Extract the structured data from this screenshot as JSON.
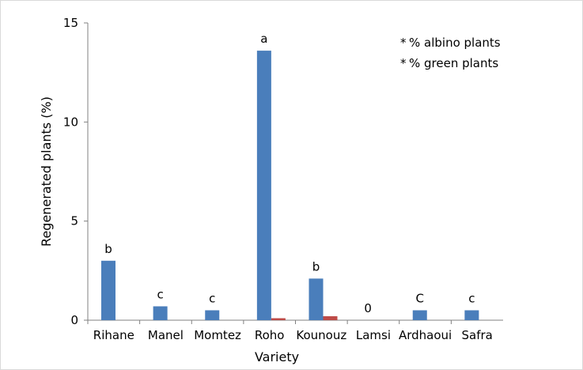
{
  "chart_data": {
    "type": "bar",
    "xlabel": "Variety",
    "ylabel": "Regenerated plants (%)",
    "ylim": [
      0,
      15
    ],
    "yticks": [
      0,
      5,
      10,
      15
    ],
    "categories": [
      "Rihane",
      "Manel",
      "Momtez",
      "Roho",
      "Kounouz",
      "Lamsi",
      "Ardhaoui",
      "Safra"
    ],
    "series": [
      {
        "name": "% albino plants",
        "color": "#4a7ebb",
        "values": [
          3.0,
          0.7,
          0.5,
          13.6,
          2.1,
          0,
          0.5,
          0.5
        ]
      },
      {
        "name": "% green plants",
        "color": "#be4b48",
        "values": [
          0,
          0,
          0,
          0.1,
          0.2,
          0,
          0,
          0
        ]
      }
    ],
    "annotations": [
      "b",
      "c",
      "c",
      "a",
      "b",
      "0",
      "C",
      "c"
    ],
    "legend": {
      "position": "top-right",
      "marker": "*"
    },
    "grid": false
  }
}
